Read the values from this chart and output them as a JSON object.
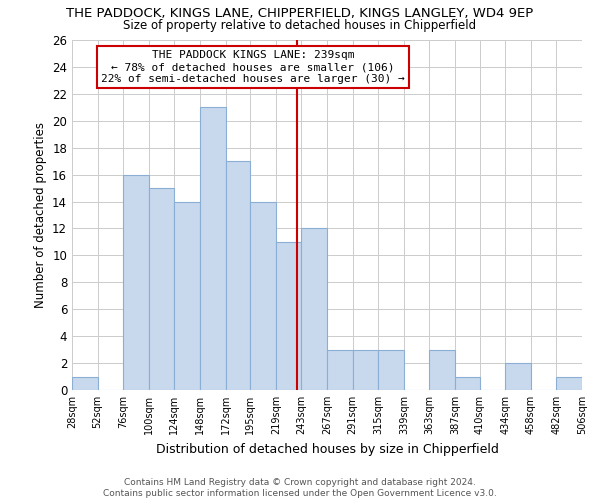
{
  "title": "THE PADDOCK, KINGS LANE, CHIPPERFIELD, KINGS LANGLEY, WD4 9EP",
  "subtitle": "Size of property relative to detached houses in Chipperfield",
  "xlabel": "Distribution of detached houses by size in Chipperfield",
  "ylabel": "Number of detached properties",
  "bin_labels": [
    "28sqm",
    "52sqm",
    "76sqm",
    "100sqm",
    "124sqm",
    "148sqm",
    "172sqm",
    "195sqm",
    "219sqm",
    "243sqm",
    "267sqm",
    "291sqm",
    "315sqm",
    "339sqm",
    "363sqm",
    "387sqm",
    "410sqm",
    "434sqm",
    "458sqm",
    "482sqm",
    "506sqm"
  ],
  "bin_edges": [
    28,
    52,
    76,
    100,
    124,
    148,
    172,
    195,
    219,
    243,
    267,
    291,
    315,
    339,
    363,
    387,
    410,
    434,
    458,
    482,
    506
  ],
  "counts": [
    1,
    0,
    16,
    15,
    14,
    21,
    17,
    14,
    11,
    12,
    3,
    3,
    3,
    0,
    3,
    1,
    0,
    2,
    0,
    1,
    0
  ],
  "bar_color": "#c8d9ee",
  "bar_edge_color": "#8aaed4",
  "property_value": 239,
  "vline_color": "#cc0000",
  "annotation_line1": "THE PADDOCK KINGS LANE: 239sqm",
  "annotation_line2": "← 78% of detached houses are smaller (106)",
  "annotation_line3": "22% of semi-detached houses are larger (30) →",
  "annotation_box_color": "#ffffff",
  "annotation_border_color": "#cc0000",
  "ylim": [
    0,
    26
  ],
  "yticks": [
    0,
    2,
    4,
    6,
    8,
    10,
    12,
    14,
    16,
    18,
    20,
    22,
    24,
    26
  ],
  "footer_line1": "Contains HM Land Registry data © Crown copyright and database right 2024.",
  "footer_line2": "Contains public sector information licensed under the Open Government Licence v3.0.",
  "grid_color": "#cccccc",
  "background_color": "#ffffff"
}
